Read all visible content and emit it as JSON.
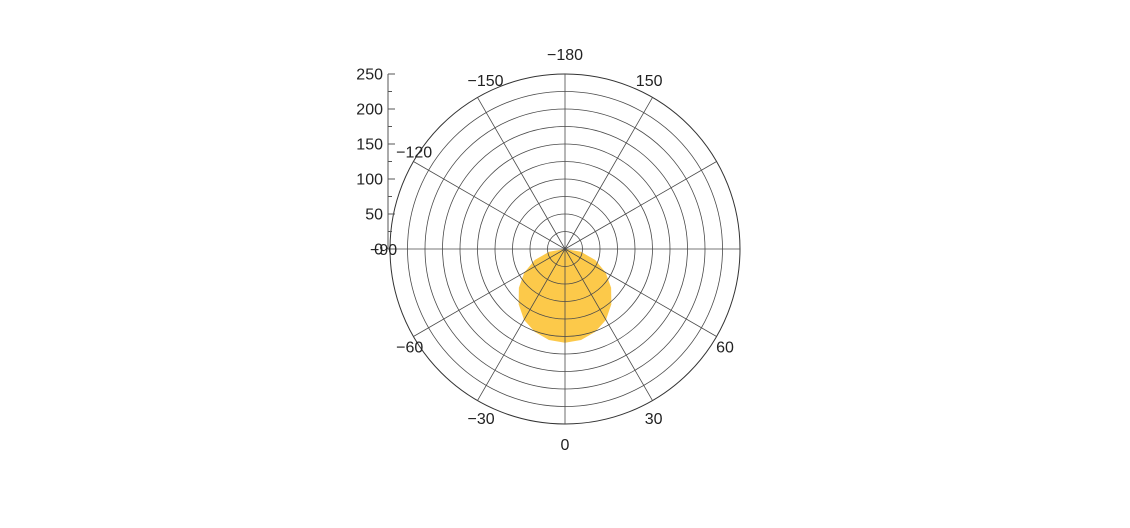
{
  "chart_data": {
    "type": "polar-area",
    "angle_unit": "degrees",
    "zero_direction": "down",
    "angle_direction": "counterclockwise",
    "radial_range": [
      0,
      250
    ],
    "radial_ticks": [
      0,
      50,
      100,
      150,
      200,
      250
    ],
    "radial_tick_labels": [
      "0",
      "50",
      "100",
      "150",
      "200",
      "250"
    ],
    "angular_ticks": [
      0,
      -30,
      -60,
      -90,
      -120,
      -150,
      -180,
      150,
      120,
      90,
      60,
      30
    ],
    "angular_tick_labels": {
      "0": "0",
      "-30": "−30",
      "-60": "−60",
      "-90": "−90",
      "-120": "−120",
      "-150": "−150",
      "-180": "−180",
      "150": "150",
      "60": "60",
      "30": "30"
    },
    "radial_grid_step": 25,
    "grid": true,
    "fill_color": "#FCC94A",
    "series": [
      {
        "angles": [
          -90,
          -80,
          -70,
          -60,
          -50,
          -40,
          -30,
          -20,
          -10,
          0,
          10,
          20,
          30,
          40,
          50,
          60,
          70,
          80,
          90
        ],
        "values": [
          0,
          23,
          46,
          67,
          86,
          103,
          117,
          126,
          132,
          134,
          132,
          126,
          117,
          103,
          86,
          67,
          46,
          23,
          0
        ]
      }
    ]
  }
}
